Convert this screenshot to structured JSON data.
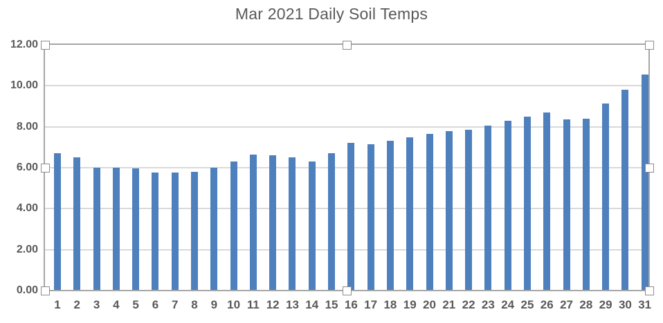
{
  "chart_data": {
    "type": "bar",
    "title": "Mar 2021 Daily Soil Temps",
    "categories": [
      "1",
      "2",
      "3",
      "4",
      "5",
      "6",
      "7",
      "8",
      "9",
      "10",
      "11",
      "12",
      "13",
      "14",
      "15",
      "16",
      "17",
      "18",
      "19",
      "20",
      "21",
      "22",
      "23",
      "24",
      "25",
      "26",
      "27",
      "28",
      "29",
      "30",
      "31"
    ],
    "values": [
      6.7,
      6.5,
      6.0,
      6.0,
      5.95,
      5.75,
      5.75,
      5.8,
      6.0,
      6.3,
      6.65,
      6.6,
      6.5,
      6.3,
      6.7,
      7.2,
      7.15,
      7.3,
      7.5,
      7.65,
      7.8,
      7.85,
      8.05,
      8.3,
      8.5,
      8.7,
      8.35,
      8.4,
      9.15,
      9.8,
      10.55
    ],
    "xlabel": "",
    "ylabel": "",
    "ylim": [
      0,
      12
    ],
    "yticks": [
      0,
      2,
      4,
      6,
      8,
      10,
      12
    ],
    "ytick_labels": [
      "0.00",
      "2.00",
      "4.00",
      "6.00",
      "8.00",
      "10.00",
      "12.00"
    ],
    "grid": true,
    "legend_position": "none",
    "colors": {
      "bar": "#4E80BD",
      "gridline": "#D9D9D9",
      "plot_border": "#A6A6A6",
      "axis_label": "#595959",
      "title": "#595959",
      "handle_fill": "#FFFFFF",
      "handle_border": "#8C8C8C"
    },
    "selection_state": "plot-area-selected"
  }
}
